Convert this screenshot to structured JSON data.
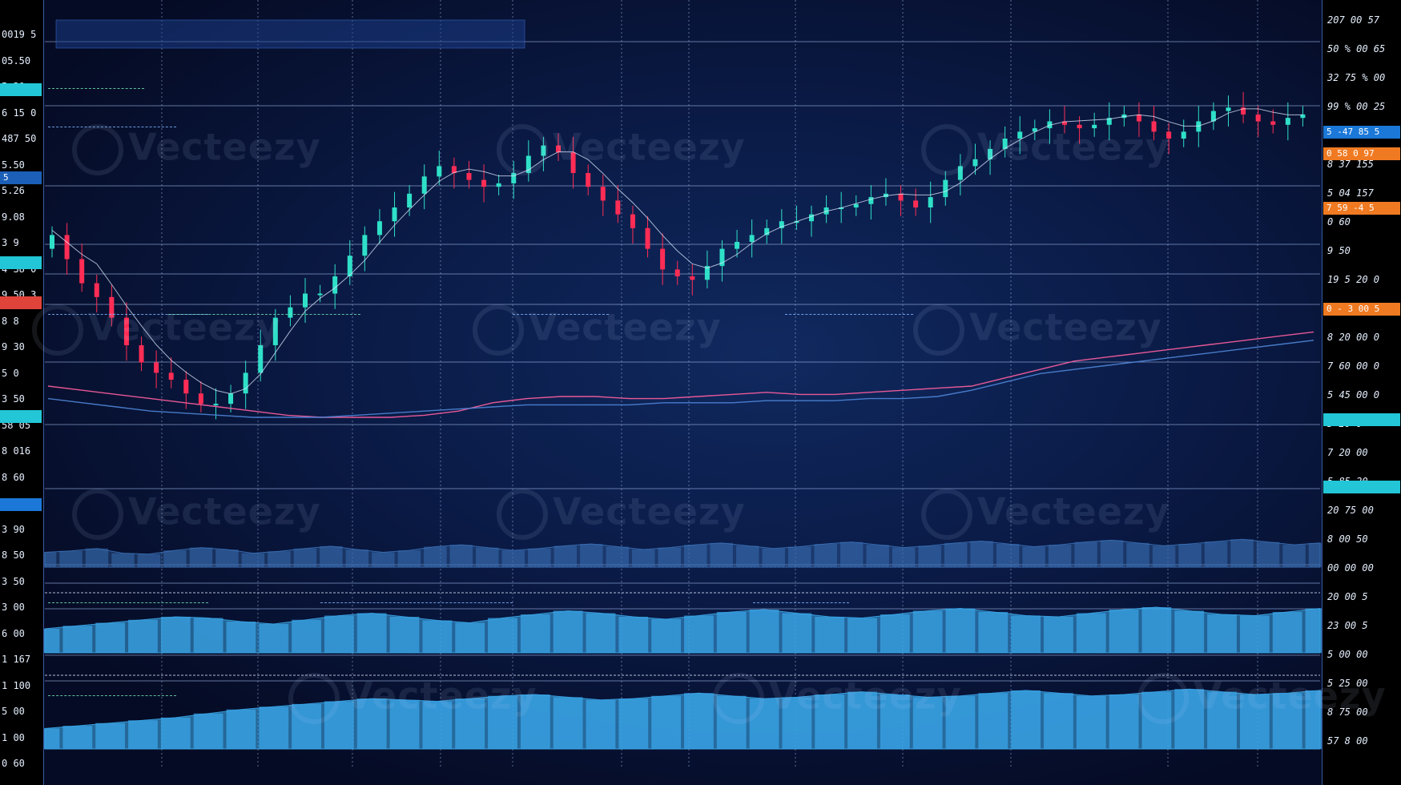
{
  "chart_data": {
    "type": "candlestick",
    "panels": [
      "price",
      "oscillator",
      "volume",
      "volume"
    ],
    "grid": true,
    "price": {
      "ylim": [
        0,
        100
      ],
      "open": [
        58,
        62,
        55,
        48,
        44,
        38,
        30,
        25,
        22,
        20,
        16,
        13,
        13,
        16,
        22,
        30,
        38,
        41,
        45,
        45,
        50,
        56,
        62,
        66,
        70,
        74,
        79,
        82,
        80,
        78,
        76,
        77,
        80,
        85,
        88,
        86,
        80,
        76,
        72,
        68,
        64,
        58,
        52,
        50,
        49,
        53,
        58,
        60,
        62,
        64,
        66,
        66,
        68,
        70,
        70,
        71,
        73,
        74,
        72,
        70,
        73,
        78,
        82,
        84,
        87,
        90,
        92,
        93,
        95,
        94,
        93,
        94,
        96,
        97,
        95,
        92,
        90,
        92,
        95,
        98,
        99,
        97,
        95,
        94,
        96
      ],
      "close": [
        62,
        55,
        48,
        44,
        38,
        30,
        25,
        22,
        20,
        16,
        13,
        13,
        16,
        22,
        30,
        38,
        41,
        45,
        45,
        50,
        56,
        62,
        66,
        70,
        74,
        79,
        82,
        80,
        78,
        76,
        77,
        80,
        85,
        88,
        86,
        80,
        76,
        72,
        68,
        64,
        58,
        52,
        50,
        49,
        53,
        58,
        60,
        62,
        64,
        66,
        66,
        68,
        70,
        70,
        71,
        73,
        74,
        72,
        70,
        73,
        78,
        82,
        84,
        87,
        90,
        92,
        93,
        95,
        94,
        93,
        94,
        96,
        97,
        95,
        92,
        90,
        92,
        95,
        98,
        99,
        97,
        95,
        94,
        96,
        97
      ]
    },
    "overlay_lines": [
      {
        "color": "#ff5fa0",
        "values": [
          30,
          28,
          26,
          24,
          22,
          20,
          18,
          16,
          15,
          15,
          15,
          16,
          18,
          22,
          24,
          25,
          25,
          24,
          24,
          25,
          26,
          27,
          26,
          26,
          27,
          28,
          29,
          30,
          34,
          38,
          42,
          44,
          46,
          48,
          50,
          52,
          54,
          56
        ]
      },
      {
        "color": "#4f86d8",
        "values": [
          24,
          22,
          20,
          18,
          17,
          16,
          15,
          15,
          15,
          16,
          17,
          18,
          19,
          20,
          21,
          21,
          21,
          21,
          22,
          22,
          22,
          23,
          23,
          23,
          24,
          24,
          25,
          28,
          32,
          36,
          38,
          40,
          42,
          44,
          46,
          48,
          50,
          52
        ]
      }
    ],
    "volume_1": [
      32,
      35,
      40,
      30,
      28,
      36,
      42,
      38,
      30,
      34,
      40,
      45,
      38,
      32,
      36,
      44,
      48,
      42,
      36,
      40,
      46,
      50,
      44,
      38,
      42,
      48,
      52,
      46,
      40,
      44,
      50,
      54,
      48,
      42,
      46,
      52,
      56,
      50,
      44,
      48,
      54,
      58,
      52,
      46,
      50,
      55,
      60,
      54,
      48,
      52
    ],
    "volume_2": [
      40,
      45,
      50,
      55,
      60,
      58,
      52,
      48,
      55,
      62,
      66,
      60,
      54,
      50,
      58,
      64,
      70,
      66,
      60,
      56,
      62,
      68,
      72,
      66,
      60,
      58,
      64,
      70,
      74,
      68,
      62,
      60,
      66,
      72,
      76,
      70,
      64,
      62,
      68,
      74
    ],
    "volume_3": [
      30,
      34,
      38,
      42,
      46,
      52,
      58,
      62,
      66,
      70,
      74,
      72,
      70,
      74,
      78,
      80,
      76,
      72,
      74,
      78,
      82,
      78,
      74,
      76,
      80,
      84,
      80,
      76,
      78,
      82,
      86,
      82,
      78,
      80,
      84,
      88,
      84,
      80,
      82,
      86
    ]
  },
  "left_axis": [
    {
      "label": "0019 5"
    },
    {
      "label": "05.50"
    },
    {
      "label": "5 30"
    },
    {
      "label": "6 15 0"
    },
    {
      "label": "487 50"
    },
    {
      "label": "5.50"
    },
    {
      "label": "5.26"
    },
    {
      "label": "9.08"
    },
    {
      "label": "3 9"
    },
    {
      "label": "4 38 0"
    },
    {
      "label": "9 50 3"
    },
    {
      "label": "8 8"
    },
    {
      "label": "9 30"
    },
    {
      "label": "5 0"
    },
    {
      "label": "3 50"
    },
    {
      "label": "58 05"
    },
    {
      "label": "8 016"
    },
    {
      "label": "8 60"
    },
    {
      "label": "8 80"
    },
    {
      "label": "3 90"
    },
    {
      "label": "8 50"
    },
    {
      "label": "3 50"
    },
    {
      "label": "3 00"
    },
    {
      "label": "6 00"
    },
    {
      "label": "1 167"
    },
    {
      "label": "1 100"
    },
    {
      "label": "5 00"
    },
    {
      "label": "1 00"
    },
    {
      "label": "0 60"
    }
  ],
  "right_axis": [
    {
      "label": "207 00 57"
    },
    {
      "label": "50 % 00 65"
    },
    {
      "label": "32 75 % 00"
    },
    {
      "label": "99 % 00 25"
    },
    {
      "label": "5 90"
    },
    {
      "label": "8 37 155"
    },
    {
      "label": "5 04 157"
    },
    {
      "label": "0 60"
    },
    {
      "label": "9 50"
    },
    {
      "label": "19 5 20 0"
    },
    {
      "label": "0 30 05 5"
    },
    {
      "label": "8 20 00 0"
    },
    {
      "label": "7 60 00 0"
    },
    {
      "label": "5 45 00 0"
    },
    {
      "label": "5 20 0"
    },
    {
      "label": "7 20 00"
    },
    {
      "label": "5 85 20"
    },
    {
      "label": "20 75 00"
    },
    {
      "label": "8 00 50"
    },
    {
      "label": "00 00 00"
    },
    {
      "label": "20 00 5"
    },
    {
      "label": "23 00 5"
    },
    {
      "label": "5 00 00"
    },
    {
      "label": "5 25 00"
    },
    {
      "label": "8 75 00"
    },
    {
      "label": "57 8 00"
    }
  ],
  "right_tags": [
    {
      "label": "5 -47 85 5",
      "color": "#1b78d8"
    },
    {
      "label": "0 58 0 97",
      "color": "#f07a22"
    },
    {
      "label": "7 59 -4 5",
      "color": "#f07a22"
    },
    {
      "label": "0 - 3 00 5",
      "color": "#f07a22"
    },
    {
      "label": "",
      "color": "#22c6d6"
    },
    {
      "label": "",
      "color": "#22c6d6"
    }
  ],
  "left_tags": [
    {
      "label": "",
      "color": "#22c6d6"
    },
    {
      "label": "5",
      "color": "#1b5fb8"
    },
    {
      "label": "",
      "color": "#22c6d6"
    },
    {
      "label": "",
      "color": "#e0433a"
    },
    {
      "label": "",
      "color": "#22c6d6"
    },
    {
      "label": "",
      "color": "#1b78d8"
    }
  ],
  "watermark": "Vecteezy",
  "colors": {
    "bull": "#2fe0c8",
    "bear": "#ff2d55",
    "grid": "#9fb8e8",
    "volume": "#3aa6e8",
    "oscillator": "#3a6fb5"
  }
}
